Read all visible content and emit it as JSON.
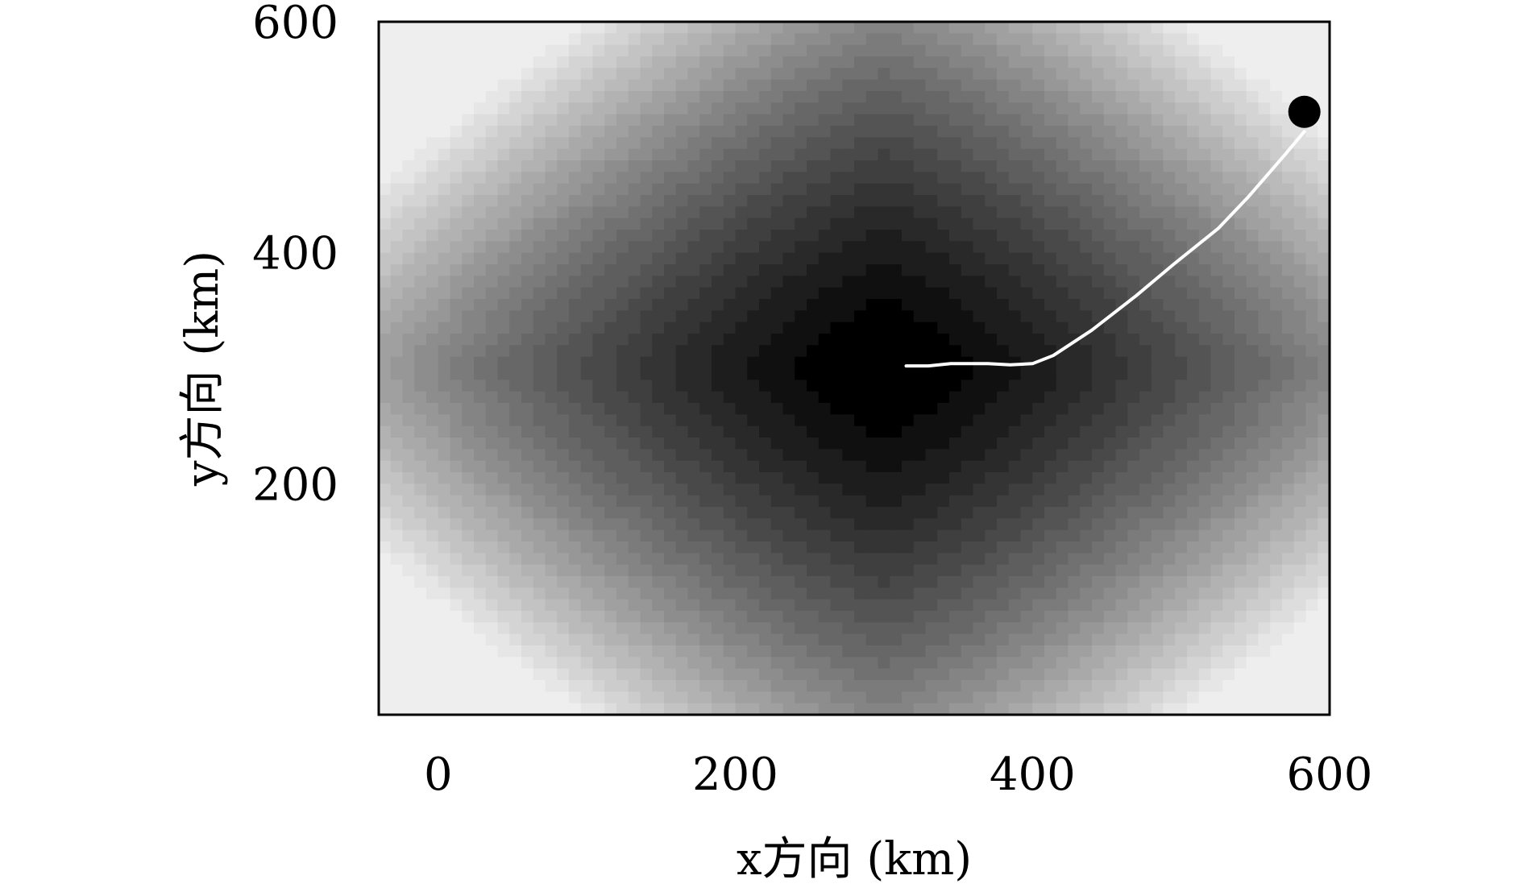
{
  "chart_data": {
    "type": "heatmap",
    "xlabel": "x方向 (km)",
    "ylabel": "y方向 (km)",
    "xlim": [
      -40,
      600
    ],
    "ylim": [
      0,
      600
    ],
    "x_ticks": [
      0,
      200,
      400,
      600
    ],
    "y_ticks": [
      200,
      400,
      600
    ],
    "colormap": "gray",
    "field": {
      "description_of_values": "scalar field, lowest (darkest) at center, increasing toward corners",
      "min_location": [
        300,
        300
      ]
    },
    "trajectory": {
      "color": "#ffffff",
      "points": [
        [
          315,
          302
        ],
        [
          330,
          302
        ],
        [
          345,
          304
        ],
        [
          370,
          304
        ],
        [
          385,
          303
        ],
        [
          400,
          304
        ],
        [
          414,
          311
        ],
        [
          440,
          333
        ],
        [
          470,
          363
        ],
        [
          495,
          390
        ],
        [
          525,
          421
        ],
        [
          545,
          448
        ],
        [
          570,
          485
        ],
        [
          583,
          505
        ]
      ]
    },
    "marker": {
      "x": 583,
      "y": 522,
      "color": "#000000"
    },
    "grid": false,
    "legend": "none"
  }
}
